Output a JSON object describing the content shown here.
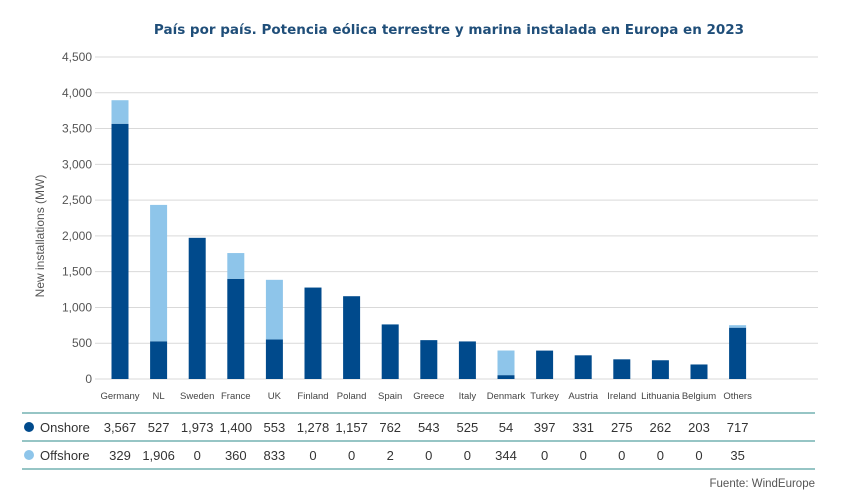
{
  "chart_data": {
    "type": "bar",
    "stacked": true,
    "title": "País por país. Potencia eólica terrestre y marina instalada en Europa en 2023",
    "xlabel": "",
    "ylabel": "New installations (MW)",
    "ylim": [
      0,
      4500
    ],
    "yticks": [
      0,
      500,
      1000,
      1500,
      2000,
      2500,
      3000,
      3500,
      4000,
      4500
    ],
    "ytick_labels": [
      "0",
      "500",
      "1,000",
      "1,500",
      "2,000",
      "2,500",
      "3,000",
      "3,500",
      "4,000",
      "4,500"
    ],
    "grid": true,
    "legend_placement": "bottom-left table",
    "categories": [
      "Germany",
      "NL",
      "Sweden",
      "France",
      "UK",
      "Finland",
      "Poland",
      "Spain",
      "Greece",
      "Italy",
      "Denmark",
      "Turkey",
      "Austria",
      "Ireland",
      "Lithuania",
      "Belgium",
      "Others"
    ],
    "series": [
      {
        "name": "Onshore",
        "color": "#004a8c",
        "values": [
          3567,
          527,
          1973,
          1400,
          553,
          1278,
          1157,
          762,
          543,
          525,
          54,
          397,
          331,
          275,
          262,
          203,
          717
        ],
        "labels": [
          "3,567",
          "527",
          "1,973",
          "1,400",
          "553",
          "1,278",
          "1,157",
          "762",
          "543",
          "525",
          "54",
          "397",
          "331",
          "275",
          "262",
          "203",
          "717"
        ]
      },
      {
        "name": "Offshore",
        "color": "#8ec5ea",
        "values": [
          329,
          1906,
          0,
          360,
          833,
          0,
          0,
          2,
          0,
          0,
          344,
          0,
          0,
          0,
          0,
          0,
          35
        ],
        "labels": [
          "329",
          "1,906",
          "0",
          "360",
          "833",
          "0",
          "0",
          "2",
          "0",
          "0",
          "344",
          "0",
          "0",
          "0",
          "0",
          "0",
          "35"
        ]
      }
    ],
    "source": "Fuente: WindEurope"
  }
}
